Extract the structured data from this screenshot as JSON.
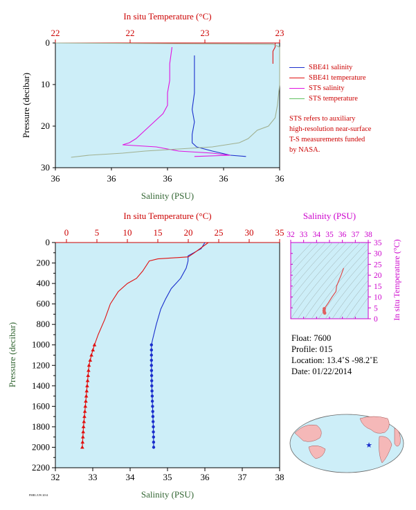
{
  "top_chart": {
    "top_axis_title": "In situ Temperature (°C)",
    "top_ticks": [
      "22",
      "22",
      "23",
      "23"
    ],
    "bottom_axis_title": "Salinity (PSU)",
    "bottom_ticks": [
      "36",
      "36",
      "36",
      "36",
      "36"
    ],
    "y_axis_title": "Pressure (decibar)",
    "y_ticks": [
      "0",
      "10",
      "20",
      "30"
    ]
  },
  "bottom_chart": {
    "top_axis_title": "In situ Temperature (°C)",
    "top_ticks": [
      "0",
      "5",
      "10",
      "15",
      "20",
      "25",
      "30",
      "35"
    ],
    "bottom_axis_title": "Salinity (PSU)",
    "bottom_ticks": [
      "32",
      "33",
      "34",
      "35",
      "36",
      "37",
      "38"
    ],
    "y_axis_title": "Pressure (decibar)",
    "y_ticks": [
      "0",
      "200",
      "400",
      "600",
      "800",
      "1000",
      "1200",
      "1400",
      "1600",
      "1800",
      "2000",
      "2200"
    ]
  },
  "ts_chart": {
    "top_axis_title": "Salinity (PSU)",
    "top_ticks": [
      "32",
      "33",
      "34",
      "35",
      "36",
      "37",
      "38"
    ],
    "right_axis_title": "In situ Temperature (°C)",
    "right_ticks": [
      "0",
      "5",
      "10",
      "15",
      "20",
      "25",
      "30",
      "35"
    ]
  },
  "legend": [
    {
      "label": "SBE41 salinity",
      "color": "#1a2ecc"
    },
    {
      "label": "SBE41 temperature",
      "color": "#e01010"
    },
    {
      "label": "STS salinity",
      "color": "#e010e0"
    },
    {
      "label": "STS temperature",
      "color": "#60c060"
    }
  ],
  "note_lines": [
    "STS refers to auxiliary",
    "high-resolution near-surface",
    "T-S measurements funded",
    "by NASA."
  ],
  "float_info": {
    "float": "Float:  7600",
    "profile": "Profile:  015",
    "location": "Location:  13.4˚S  -98.2˚E",
    "date": "Date:  01/22/2014"
  },
  "stamp": "PMEL/UW 2014",
  "colors": {
    "plot_bg": "#cdeef8",
    "axis_red": "#cc0000",
    "axis_green": "#336633",
    "axis_magenta": "#cc00cc",
    "sbe_sal": "#1a2ecc",
    "sbe_temp": "#e01010",
    "sts_sal": "#e010e0",
    "sts_temp": "#a0b090"
  },
  "chart_data": [
    {
      "type": "line",
      "title": "",
      "xlabel": "Salinity (PSU)",
      "x2label": "In situ Temperature (°C)",
      "ylabel": "Pressure (decibar)",
      "ylim": [
        30,
        0
      ],
      "series": [
        {
          "name": "SBE41 salinity",
          "x_units": "salinity_rel",
          "points": [
            [
              0.62,
              3
            ],
            [
              0.62,
              8
            ],
            [
              0.62,
              12
            ],
            [
              0.61,
              16
            ],
            [
              0.62,
              19
            ],
            [
              0.61,
              22
            ],
            [
              0.61,
              24
            ],
            [
              0.63,
              25
            ],
            [
              0.7,
              26
            ],
            [
              0.78,
              27
            ],
            [
              0.85,
              27.3
            ]
          ]
        },
        {
          "name": "SBE41 temperature",
          "x_units": "temperature_rel",
          "points": [
            [
              0.98,
              0
            ],
            [
              0.98,
              1
            ],
            [
              0.97,
              2
            ],
            [
              0.97,
              5
            ]
          ]
        },
        {
          "name": "STS salinity",
          "x_units": "salinity_rel",
          "points": [
            [
              0.52,
              1
            ],
            [
              0.51,
              5
            ],
            [
              0.51,
              9
            ],
            [
              0.5,
              12
            ],
            [
              0.5,
              15
            ],
            [
              0.48,
              17
            ],
            [
              0.44,
              19
            ],
            [
              0.4,
              21
            ],
            [
              0.36,
              23
            ],
            [
              0.33,
              24
            ],
            [
              0.3,
              24.5
            ],
            [
              0.45,
              25
            ],
            [
              0.55,
              26
            ],
            [
              0.7,
              26.5
            ],
            [
              0.78,
              27
            ],
            [
              0.62,
              27.3
            ]
          ]
        },
        {
          "name": "STS temperature",
          "x_units": "temperature_rel",
          "points": [
            [
              0.0,
              0
            ],
            [
              0.97,
              0.3
            ],
            [
              1.0,
              1
            ],
            [
              1.0,
              5
            ],
            [
              1.0,
              10
            ],
            [
              0.99,
              15
            ],
            [
              0.98,
              18
            ],
            [
              0.95,
              20
            ],
            [
              0.9,
              21
            ],
            [
              0.86,
              23
            ],
            [
              0.82,
              24
            ],
            [
              0.7,
              25
            ],
            [
              0.55,
              25.5
            ],
            [
              0.4,
              26
            ],
            [
              0.3,
              26.5
            ],
            [
              0.15,
              27
            ],
            [
              0.07,
              27.5
            ]
          ]
        }
      ]
    },
    {
      "type": "line",
      "title": "",
      "xlabel": "Salinity (PSU)",
      "x2label": "In situ Temperature (°C)",
      "ylabel": "Pressure (decibar)",
      "ylim": [
        2200,
        0
      ],
      "series": [
        {
          "name": "SBE41 salinity",
          "x_field": "salinity",
          "points": [
            [
              36.0,
              0
            ],
            [
              35.9,
              60
            ],
            [
              35.7,
              100
            ],
            [
              35.55,
              130
            ],
            [
              35.55,
              180
            ],
            [
              35.5,
              250
            ],
            [
              35.35,
              350
            ],
            [
              35.1,
              450
            ],
            [
              34.95,
              550
            ],
            [
              34.82,
              650
            ],
            [
              34.7,
              800
            ],
            [
              34.6,
              950
            ],
            [
              34.57,
              1000
            ],
            [
              34.57,
              1200
            ],
            [
              34.58,
              1400
            ],
            [
              34.6,
              1600
            ],
            [
              34.62,
              1800
            ],
            [
              34.63,
              2000
            ]
          ]
        },
        {
          "name": "SBE41 temperature",
          "x_field": "temperature",
          "points": [
            [
              23.3,
              0
            ],
            [
              21.0,
              100
            ],
            [
              20.0,
              140
            ],
            [
              15.0,
              160
            ],
            [
              13.6,
              180
            ],
            [
              12.5,
              280
            ],
            [
              11.5,
              350
            ],
            [
              10.0,
              400
            ],
            [
              8.5,
              480
            ],
            [
              7.2,
              600
            ],
            [
              6.3,
              750
            ],
            [
              5.2,
              900
            ],
            [
              4.6,
              1000
            ],
            [
              4.1,
              1100
            ],
            [
              3.7,
              1200
            ],
            [
              3.4,
              1400
            ],
            [
              3.1,
              1600
            ],
            [
              2.8,
              1800
            ],
            [
              2.6,
              2000
            ]
          ]
        }
      ]
    },
    {
      "type": "scatter",
      "title": "",
      "xlabel": "Salinity (PSU)",
      "ylabel": "In situ Temperature (°C)",
      "xlim": [
        32,
        38
      ],
      "ylim": [
        0,
        35
      ],
      "series": [
        {
          "name": "",
          "points": [
            [
              36.1,
              23.3
            ],
            [
              35.9,
              20.0
            ],
            [
              35.55,
              15.0
            ],
            [
              35.5,
              12.5
            ],
            [
              35.2,
              10.0
            ],
            [
              34.9,
              7.2
            ],
            [
              34.7,
              5.5
            ],
            [
              34.6,
              4.6
            ],
            [
              34.58,
              3.7
            ],
            [
              34.6,
              3.0
            ],
            [
              34.63,
              2.6
            ]
          ]
        }
      ]
    }
  ]
}
